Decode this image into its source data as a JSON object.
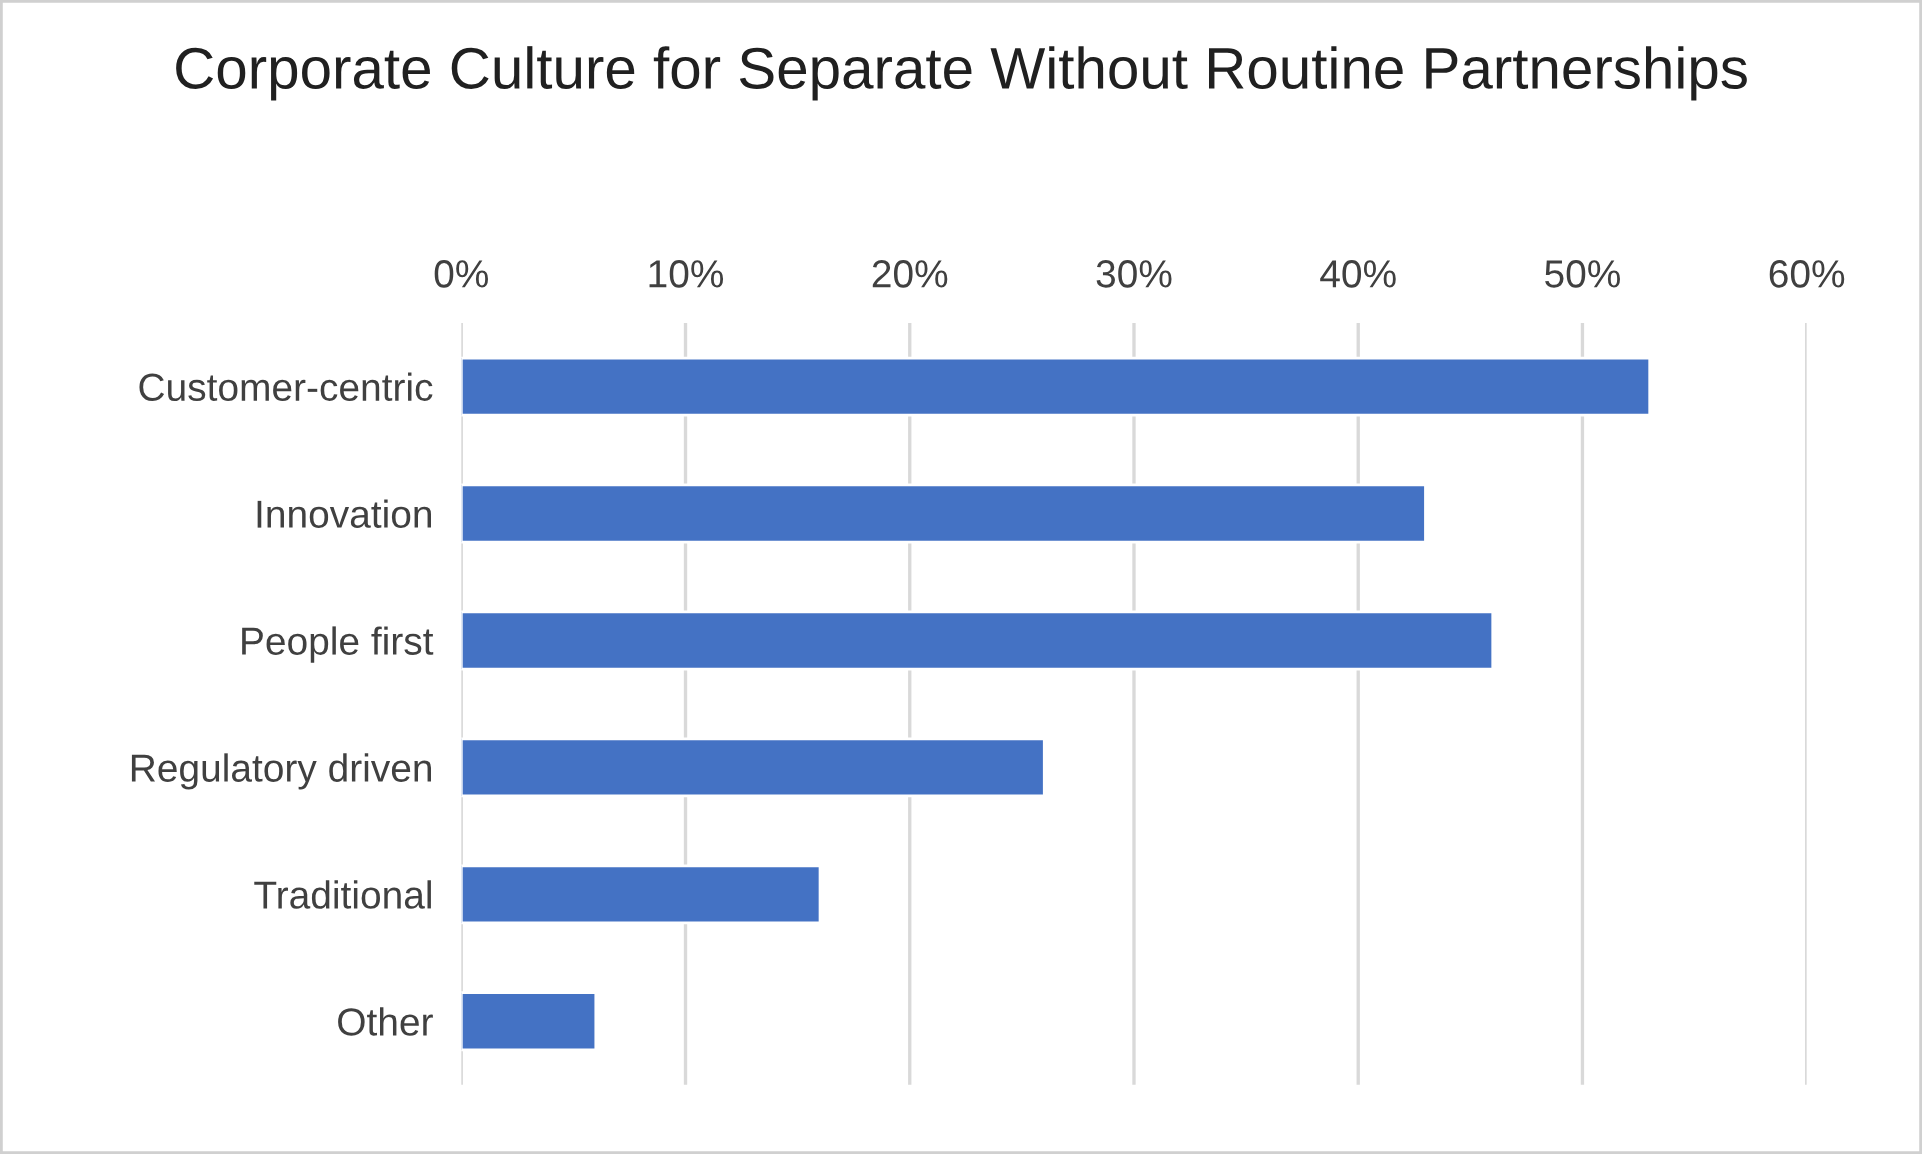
{
  "chart_data": {
    "type": "bar",
    "orientation": "horizontal",
    "title": "Corporate Culture for Separate Without Routine Partnerships",
    "categories": [
      "Customer-centric",
      "Innovation",
      "People first",
      "Regulatory driven",
      "Traditional",
      "Other"
    ],
    "values": [
      53,
      43,
      46,
      26,
      16,
      6
    ],
    "color": "#4472c4",
    "xlim": [
      0,
      60
    ],
    "xticks": [
      {
        "value": 0,
        "label": "0%"
      },
      {
        "value": 10,
        "label": "10%"
      },
      {
        "value": 20,
        "label": "20%"
      },
      {
        "value": 30,
        "label": "30%"
      },
      {
        "value": 40,
        "label": "40%"
      },
      {
        "value": 50,
        "label": "50%"
      },
      {
        "value": 60,
        "label": "60%"
      }
    ],
    "grid": "x"
  }
}
